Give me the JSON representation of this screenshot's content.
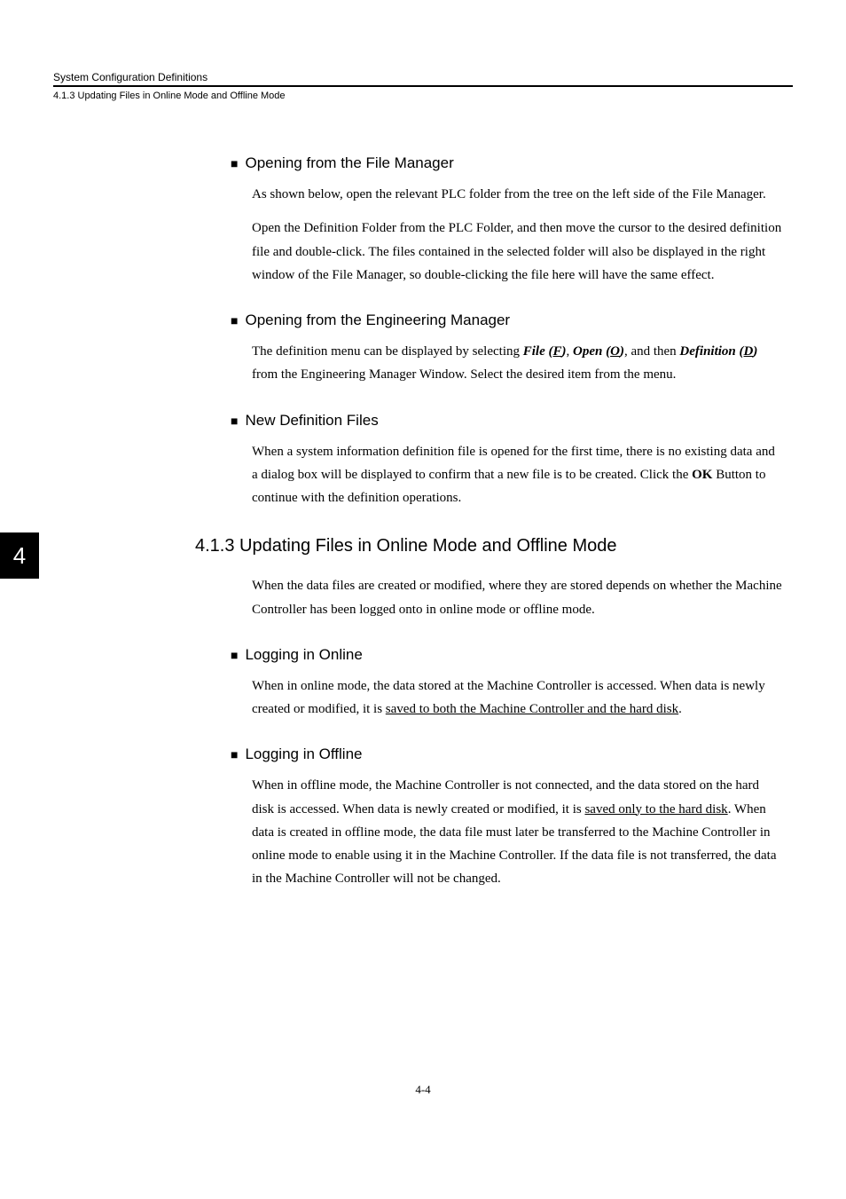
{
  "header": {
    "running_head": "System Configuration Definitions",
    "running_sub": "4.1.3  Updating Files in Online Mode and Offline Mode"
  },
  "chapter_tab": "4",
  "sections": {
    "filemgr": {
      "title": "Opening from the File Manager",
      "p1": "As shown below, open the relevant PLC folder from the tree on the left side of the File Manager.",
      "p2": "Open the Definition Folder from the PLC Folder, and then move the cursor to the desired definition file and double-click. The files contained in the selected folder will also be displayed in the right window of the File Manager, so double-clicking the file here will have the same effect."
    },
    "engmgr": {
      "title": "Opening from the Engineering Manager",
      "p_pre": "The definition menu can be displayed by selecting ",
      "file": "File (",
      "file_u": "F",
      "file_end": ")",
      "sep1": ", ",
      "open": "Open (",
      "open_u": "O",
      "open_end": ")",
      "sep2": ", and then ",
      "def": "Definition (",
      "def_u": "D",
      "def_end": ")",
      "p_post": " from the Engineering Manager Window. Select the desired item from the menu."
    },
    "newdef": {
      "title": "New Definition Files",
      "p_pre": "When a system information definition file is opened for the first time, there is no existing data and a dialog box will be displayed to confirm that a new file is to be created. Click the ",
      "ok": "OK",
      "p_post": " Button to continue with the definition operations."
    },
    "sec413": {
      "title": "4.1.3  Updating Files in Online Mode and Offline Mode",
      "intro": "When the data files are created or modified, where they are stored depends on whether the Machine Controller has been logged onto in online mode or offline mode."
    },
    "online": {
      "title": "Logging in Online",
      "p_pre": "When in online mode, the data stored at the Machine Controller is accessed. When data is newly created or modified, it is ",
      "u": "saved to both the Machine Controller and the hard disk",
      "p_post": "."
    },
    "offline": {
      "title": "Logging in Offline",
      "p_pre": "When in offline mode, the Machine Controller is not connected, and the data stored on the hard disk is accessed. When data is newly created or modified, it is ",
      "u": "saved only to the hard disk",
      "p_post": ". When data is created in offline mode, the data file must later be transferred to the Machine Controller in online mode to enable using it in the Machine Controller. If the data file is not transferred, the data in the Machine Controller will not be changed."
    }
  },
  "footer": "4-4"
}
